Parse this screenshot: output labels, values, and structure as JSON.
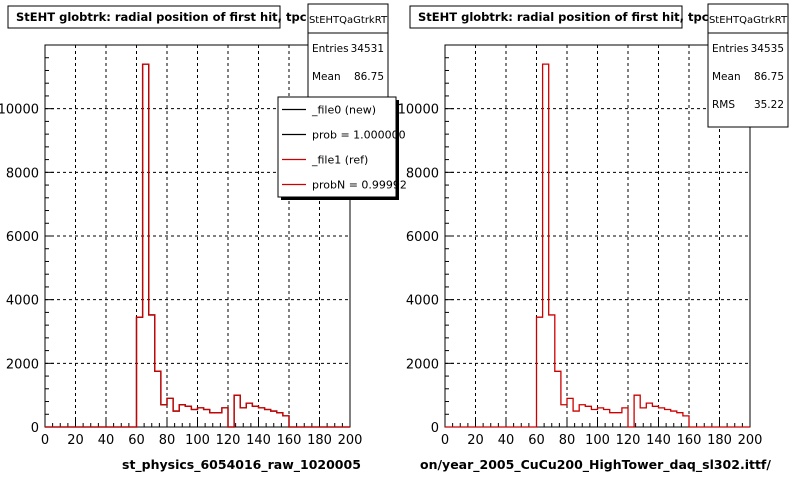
{
  "panels": [
    {
      "title": "StEHT globtrk: radial position of first hit, tpc",
      "stats": {
        "name": "StEHTQaGtrkRT",
        "rows": [
          {
            "label": "Entries",
            "value": "34531"
          },
          {
            "label": "Mean",
            "value": "86.75"
          }
        ]
      },
      "legend": [
        {
          "label": "_file0 (new)",
          "color": "#000000"
        },
        {
          "label": "prob = 1.000000",
          "color": "#000000"
        },
        {
          "label": "_file1 (ref)",
          "color": "#cc0000"
        },
        {
          "label": "probN = 0.99992",
          "color": "#cc0000"
        }
      ],
      "footer": "st_physics_6054016_raw_1020005"
    },
    {
      "title": "StEHT globtrk: radial position of first hit, tpc",
      "stats": {
        "name": "StEHTQaGtrkRT",
        "rows": [
          {
            "label": "Entries",
            "value": "34535"
          },
          {
            "label": "Mean",
            "value": "86.75"
          },
          {
            "label": "RMS",
            "value": "35.22"
          }
        ]
      },
      "legend": [],
      "footer": "on/year_2005_CuCu200_HighTower_daq_sl302.ittf/"
    }
  ],
  "chart_data": [
    {
      "type": "histogram",
      "title": "StEHT globtrk: radial position of first hit, tpc",
      "xlim": [
        0,
        200
      ],
      "ylim": [
        0,
        12000
      ],
      "xticks": [
        0,
        20,
        40,
        60,
        80,
        100,
        120,
        140,
        160,
        180,
        200
      ],
      "yticks": [
        0,
        2000,
        4000,
        6000,
        8000,
        10000
      ],
      "grid": true,
      "legend_position": "top-right",
      "bin_width": 4,
      "bin_start": 0,
      "series": [
        {
          "name": "_file0 (new)",
          "color": "#000000",
          "values": [
            0,
            0,
            0,
            0,
            0,
            0,
            0,
            0,
            0,
            0,
            0,
            0,
            0,
            0,
            0,
            3450,
            11400,
            3520,
            1750,
            700,
            900,
            500,
            700,
            650,
            550,
            600,
            550,
            450,
            450,
            600,
            0,
            1000,
            600,
            750,
            650,
            600,
            550,
            500,
            450,
            350,
            0,
            0,
            0,
            0,
            0,
            0,
            0,
            0,
            0,
            0
          ]
        },
        {
          "name": "_file1 (ref)",
          "color": "#cc0000",
          "values": [
            0,
            0,
            0,
            0,
            0,
            0,
            0,
            0,
            0,
            0,
            0,
            0,
            0,
            0,
            0,
            3450,
            11400,
            3520,
            1750,
            700,
            900,
            500,
            700,
            650,
            550,
            600,
            550,
            450,
            450,
            600,
            0,
            1000,
            600,
            750,
            650,
            600,
            550,
            500,
            450,
            350,
            0,
            0,
            0,
            0,
            0,
            0,
            0,
            0,
            0,
            0
          ]
        }
      ]
    },
    {
      "type": "histogram",
      "title": "StEHT globtrk: radial position of first hit, tpc",
      "xlim": [
        0,
        200
      ],
      "ylim": [
        0,
        12000
      ],
      "xticks": [
        0,
        20,
        40,
        60,
        80,
        100,
        120,
        140,
        160,
        180,
        200
      ],
      "yticks": [
        0,
        2000,
        4000,
        6000,
        8000,
        10000
      ],
      "grid": true,
      "bin_width": 4,
      "bin_start": 0,
      "series": [
        {
          "color": "#cc0000",
          "values": [
            0,
            0,
            0,
            0,
            0,
            0,
            0,
            0,
            0,
            0,
            0,
            0,
            0,
            0,
            0,
            3450,
            11400,
            3520,
            1750,
            700,
            900,
            500,
            700,
            650,
            550,
            600,
            550,
            450,
            450,
            600,
            0,
            1000,
            600,
            750,
            650,
            600,
            550,
            500,
            450,
            350,
            0,
            0,
            0,
            0,
            0,
            0,
            0,
            0,
            0,
            0
          ]
        }
      ]
    }
  ]
}
